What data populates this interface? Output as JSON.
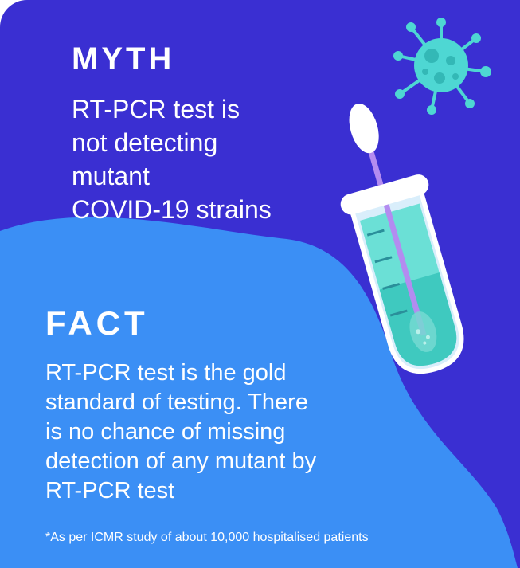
{
  "myth": {
    "heading": "MYTH",
    "lines": [
      "RT-PCR test is",
      "not detecting",
      "mutant",
      "COVID-19 strains"
    ]
  },
  "fact": {
    "heading": "FACT",
    "lines": [
      "RT-PCR test is the gold",
      "standard of testing. There",
      "is no chance of missing",
      "detection of any mutant by",
      "RT-PCR test"
    ]
  },
  "footnote": "*As per ICMR study of about 10,000 hospitalised patients",
  "colors": {
    "dark_bg": "#3a2fd2",
    "light_bg": "#3b8ff5",
    "virus": "#4ed7d3",
    "liquid": "#3fd0c6",
    "swab_stick": "#b38cf0"
  },
  "icons": [
    "virus-icon",
    "test-tube-icon",
    "swab-icon"
  ]
}
